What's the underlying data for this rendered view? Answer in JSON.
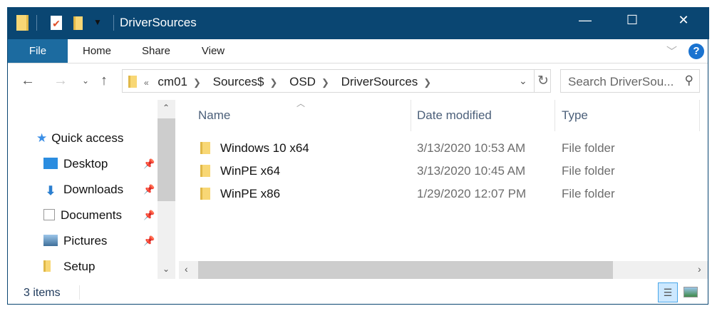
{
  "window": {
    "title": "DriverSources",
    "controls": {
      "minimize": "—",
      "maximize": "☐",
      "close": "✕"
    }
  },
  "ribbon": {
    "tabs": [
      "File",
      "Home",
      "Share",
      "View"
    ],
    "help": "?"
  },
  "address": {
    "overflow": "«",
    "crumbs": [
      "cm01",
      "Sources$",
      "OSD",
      "DriverSources"
    ]
  },
  "search": {
    "placeholder": "Search DriverSou..."
  },
  "nav_pane": {
    "items": [
      {
        "label": "Quick access",
        "icon": "star-icon"
      },
      {
        "label": "Desktop",
        "icon": "desktop-icon",
        "pinned": true
      },
      {
        "label": "Downloads",
        "icon": "download-icon",
        "pinned": true
      },
      {
        "label": "Documents",
        "icon": "document-icon",
        "pinned": true
      },
      {
        "label": "Pictures",
        "icon": "pictures-icon",
        "pinned": true
      },
      {
        "label": "Setup",
        "icon": "folder-icon"
      }
    ]
  },
  "columns": [
    "Name",
    "Date modified",
    "Type"
  ],
  "files": [
    {
      "name": "Windows 10 x64",
      "date": "3/13/2020 10:53 AM",
      "type": "File folder"
    },
    {
      "name": "WinPE x64",
      "date": "3/13/2020 10:45 AM",
      "type": "File folder"
    },
    {
      "name": "WinPE x86",
      "date": "1/29/2020 12:07 PM",
      "type": "File folder"
    }
  ],
  "status": {
    "count": "3 items"
  },
  "colors": {
    "titlebar": "#0a4672",
    "file_tab": "#1c6ba0",
    "folder": "#f8d775"
  }
}
